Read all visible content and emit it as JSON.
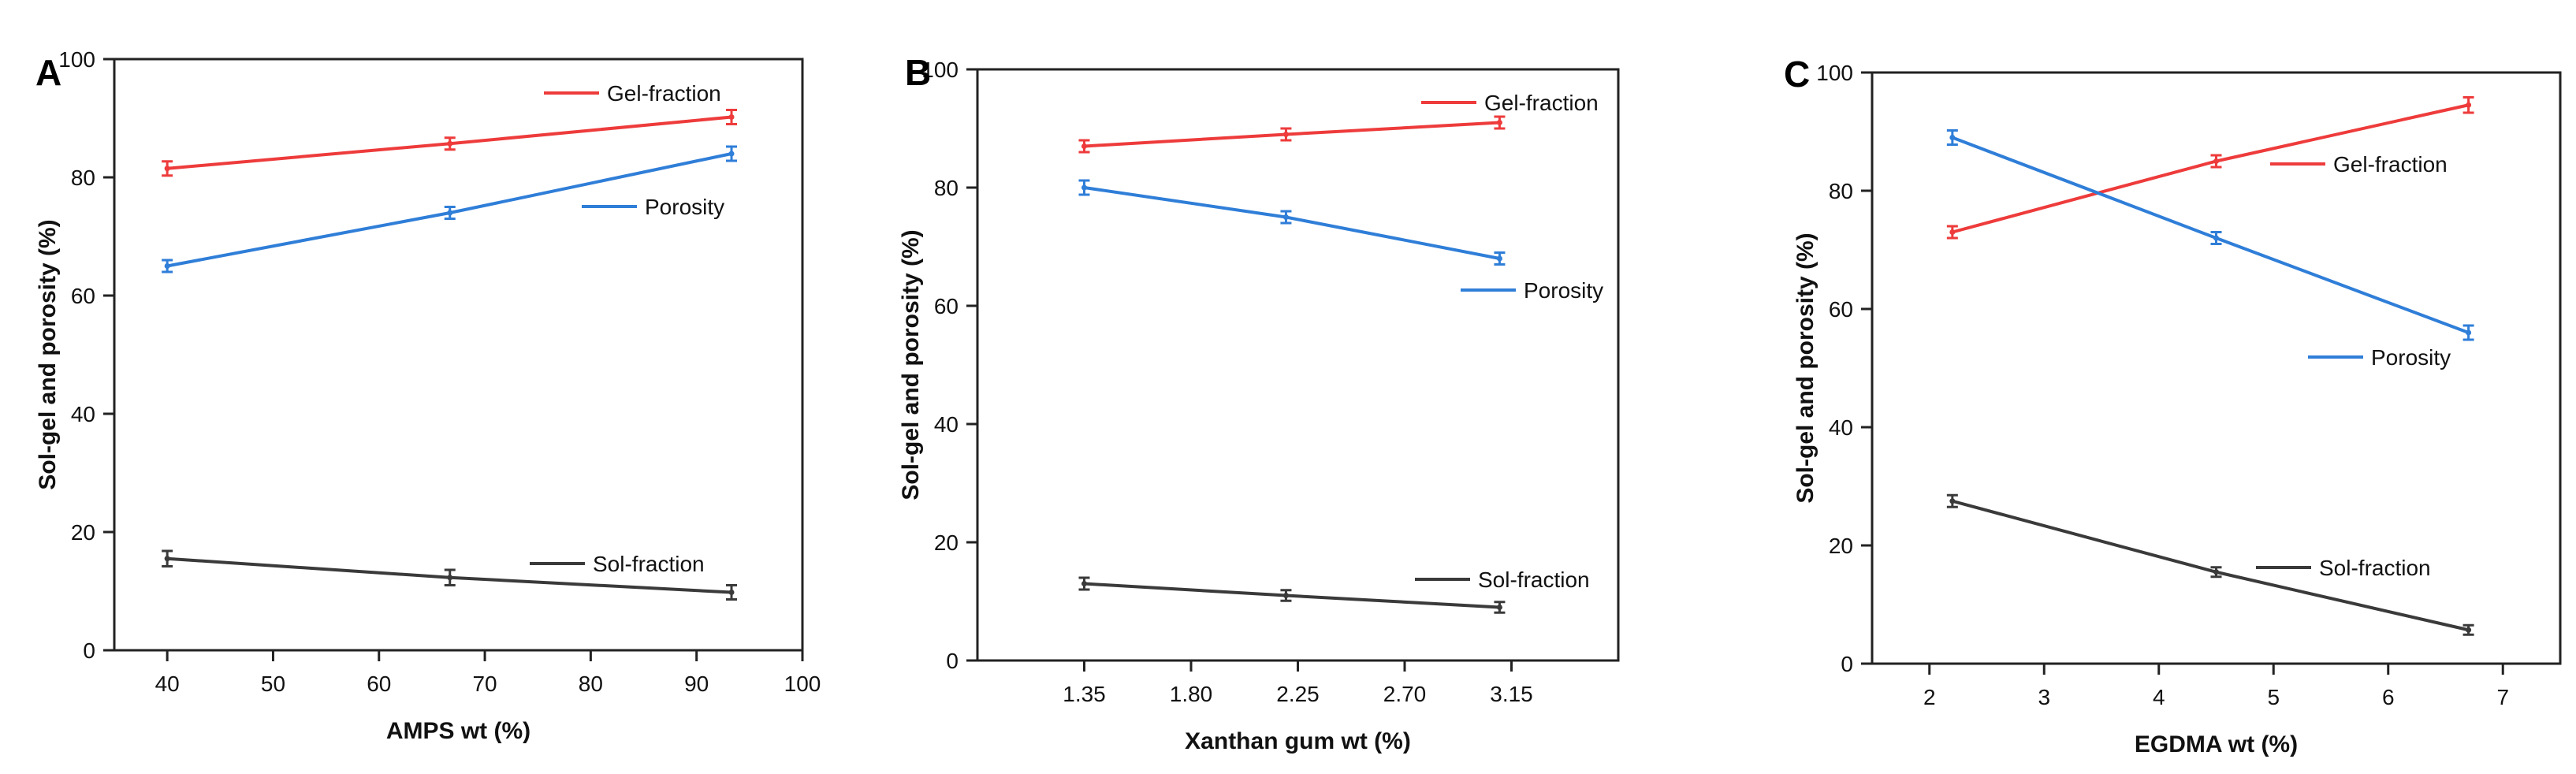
{
  "colors": {
    "gel": "#ee3b3b",
    "porosity": "#2f7ed8",
    "sol": "#3a3a3a",
    "axis": "#222222"
  },
  "chart_data": [
    {
      "type": "line",
      "panel_label": "A",
      "xlabel": "AMPS wt (%)",
      "ylabel": "Sol-gel and porosity (%)",
      "xlim": [
        35,
        100
      ],
      "ylim": [
        0,
        100
      ],
      "xticks": [
        40,
        50,
        60,
        70,
        80,
        90,
        100
      ],
      "xtick_labels": [
        "40",
        "50",
        "60",
        "70",
        "80",
        "90",
        "100"
      ],
      "yticks": [
        0,
        20,
        40,
        60,
        80,
        100
      ],
      "ytick_labels": [
        "0",
        "20",
        "40",
        "60",
        "80",
        "100"
      ],
      "x": [
        40,
        66.7,
        93.3
      ],
      "series": [
        {
          "name": "Gel-fraction",
          "color_key": "gel",
          "values": [
            81.5,
            85.7,
            90.2
          ],
          "errors": [
            1.2,
            1.0,
            1.2
          ]
        },
        {
          "name": "Porosity",
          "color_key": "porosity",
          "values": [
            65,
            74,
            84
          ],
          "errors": [
            1.0,
            1.0,
            1.2
          ]
        },
        {
          "name": "Sol-fraction",
          "color_key": "sol",
          "values": [
            15.5,
            12.3,
            9.8
          ],
          "errors": [
            1.3,
            1.3,
            1.2
          ]
        }
      ]
    },
    {
      "type": "line",
      "panel_label": "B",
      "xlabel": "Xanthan gum wt (%)",
      "ylabel": "Sol-gel and porosity (%)",
      "xlim": [
        0.9,
        3.6
      ],
      "ylim": [
        0,
        100
      ],
      "xticks": [
        1.35,
        1.8,
        2.25,
        2.7,
        3.15
      ],
      "xtick_labels": [
        "1.35",
        "1.80",
        "2.25",
        "2.70",
        "3.15"
      ],
      "yticks": [
        0,
        20,
        40,
        60,
        80,
        100
      ],
      "ytick_labels": [
        "0",
        "20",
        "40",
        "60",
        "80",
        "100"
      ],
      "x": [
        1.35,
        2.2,
        3.1
      ],
      "series": [
        {
          "name": "Gel-fraction",
          "color_key": "gel",
          "values": [
            87,
            89,
            91
          ],
          "errors": [
            1.0,
            1.0,
            1.0
          ]
        },
        {
          "name": "Porosity",
          "color_key": "porosity",
          "values": [
            80,
            75,
            68
          ],
          "errors": [
            1.2,
            1.0,
            1.0
          ]
        },
        {
          "name": "Sol-fraction",
          "color_key": "sol",
          "values": [
            13,
            11,
            9
          ],
          "errors": [
            1.0,
            0.9,
            0.9
          ]
        }
      ]
    },
    {
      "type": "line",
      "panel_label": "C",
      "xlabel": "EGDMA wt (%)",
      "ylabel": "Sol-gel and porosity (%)",
      "xlim": [
        1.5,
        7.5
      ],
      "ylim": [
        0,
        100
      ],
      "xticks": [
        2,
        3,
        4,
        5,
        6,
        7
      ],
      "xtick_labels": [
        "2",
        "3",
        "4",
        "5",
        "6",
        "7"
      ],
      "yticks": [
        0,
        20,
        40,
        60,
        80,
        100
      ],
      "ytick_labels": [
        "0",
        "20",
        "40",
        "60",
        "80",
        "100"
      ],
      "x": [
        2.2,
        4.5,
        6.7
      ],
      "series": [
        {
          "name": "Gel-fraction",
          "color_key": "gel",
          "values": [
            73,
            85,
            94.5
          ],
          "errors": [
            1.0,
            1.0,
            1.3
          ]
        },
        {
          "name": "Porosity",
          "color_key": "porosity",
          "values": [
            89,
            72,
            56
          ],
          "errors": [
            1.2,
            1.0,
            1.2
          ]
        },
        {
          "name": "Sol-fraction",
          "color_key": "sol",
          "values": [
            27.5,
            15.5,
            5.7
          ],
          "errors": [
            1.0,
            0.8,
            0.8
          ]
        }
      ]
    }
  ]
}
